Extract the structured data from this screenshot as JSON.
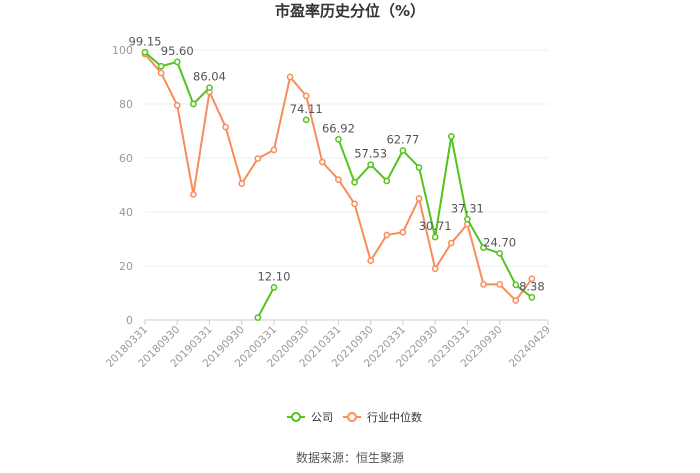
{
  "chart_data": {
    "type": "line",
    "title": "市盈率历史分位（%）",
    "source": "数据来源：恒生聚源",
    "ylim": [
      0,
      100
    ],
    "yticks": [
      0,
      20,
      40,
      60,
      80,
      100
    ],
    "grid": true,
    "legend_position": "bottom",
    "x": [
      "20180331",
      "20180630",
      "20180930",
      "20181231",
      "20190331",
      "20190630",
      "20190930",
      "20191231",
      "20200331",
      "20200630",
      "20200930",
      "20201231",
      "20210331",
      "20210630",
      "20210930",
      "20211231",
      "20220331",
      "20220630",
      "20220930",
      "20221231",
      "20230331",
      "20230630",
      "20230930",
      "20231231",
      "20240331",
      "20240429"
    ],
    "x_tick_labels": [
      "20180331",
      "20180930",
      "20190331",
      "20190930",
      "20200331",
      "20200930",
      "20210331",
      "20210930",
      "20220331",
      "20220930",
      "20230331",
      "20230930",
      "20240429"
    ],
    "series": [
      {
        "name": "公司",
        "color": "#52c41a",
        "values": [
          99.15,
          94.0,
          95.6,
          80.0,
          86.04,
          null,
          null,
          0.9,
          12.1,
          null,
          74.11,
          null,
          66.92,
          51.0,
          57.53,
          51.5,
          62.77,
          56.5,
          30.71,
          68.0,
          37.31,
          26.8,
          24.7,
          13.0,
          8.38,
          null
        ],
        "labels": {
          "0": "99.15",
          "2": "95.60",
          "4": "86.04",
          "8": "12.10",
          "10": "74.11",
          "12": "66.92",
          "14": "57.53",
          "16": "62.77",
          "18": "30.71",
          "20": "37.31",
          "22": "24.70",
          "24": "8.38"
        }
      },
      {
        "name": "行业中位数",
        "color": "#fa8c5a",
        "values": [
          98.5,
          91.5,
          79.5,
          46.5,
          84.5,
          71.5,
          50.5,
          59.8,
          63.0,
          90.0,
          83.0,
          58.5,
          52.0,
          43.0,
          22.0,
          31.5,
          32.5,
          45.0,
          19.0,
          28.5,
          35.5,
          13.2,
          13.2,
          7.2,
          15.3,
          null
        ]
      }
    ]
  }
}
